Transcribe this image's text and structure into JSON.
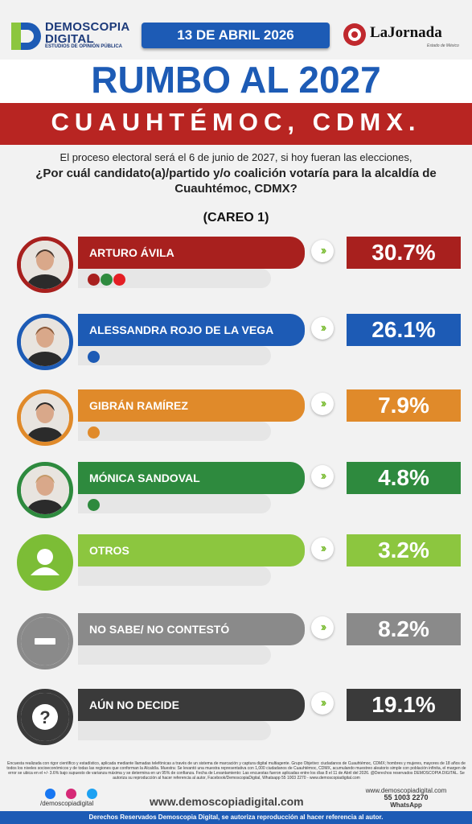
{
  "header": {
    "brand_left": "DEMOSCOPIA DIGITAL",
    "brand_left_tagline": "ESTUDIOS DE OPINIÓN PÚBLICA",
    "date": "13 DE ABRIL 2026",
    "brand_right": "LaJornada",
    "brand_right_tagline": "Estado de México"
  },
  "title": "RUMBO AL 2027",
  "subtitle": "CUAUHTÉMOC, CDMX.",
  "question_line1": "El proceso electoral será el 6 de junio de 2027, si hoy fueran las elecciones,",
  "question_line2": "¿Por cuál candidato(a)/partido y/o coalición votaría para la alcaldía de Cuauhtémoc, CDMX?",
  "careo": "(CAREO 1)",
  "chart_data": {
    "type": "bar",
    "title": "(CAREO 1)",
    "categories": [
      "ARTURO ÁVILA",
      "ALESSANDRA ROJO DE LA VEGA",
      "GIBRÁN RAMÍREZ",
      "MÓNICA SANDOVAL",
      "OTROS",
      "NO SABE/ NO CONTESTÓ",
      "AÚN NO DECIDE"
    ],
    "values": [
      30.7,
      26.1,
      7.9,
      4.8,
      3.2,
      8.2,
      19.1
    ],
    "value_labels": [
      "30.7%",
      "26.1%",
      "7.9%",
      "4.8%",
      "3.2%",
      "8.2%",
      "19.1%"
    ],
    "unit": "%",
    "colors": [
      "#a8201e",
      "#1d5bb5",
      "#e08a2a",
      "#2e8a3e",
      "#7cbd36",
      "#8a8a8a",
      "#3a3a3a"
    ],
    "party_chips": [
      [
        "MORENA",
        "PVEM",
        "PT"
      ],
      [
        "PAN"
      ],
      [
        "MC"
      ],
      [
        "PRI"
      ],
      [],
      [],
      []
    ]
  },
  "rows": [
    {
      "label": "ARTURO ÁVILA",
      "pct": "30.7%",
      "color": "#a8201e",
      "bar_color": "#a8201e",
      "icon": "candidate-photo"
    },
    {
      "label": "ALESSANDRA ROJO DE LA VEGA",
      "pct": "26.1%",
      "color": "#1d5bb5",
      "bar_color": "#1d5bb5",
      "icon": "candidate-photo"
    },
    {
      "label": "GIBRÁN RAMÍREZ",
      "pct": "7.9%",
      "color": "#e08a2a",
      "bar_color": "#e08a2a",
      "icon": "candidate-photo"
    },
    {
      "label": "MÓNICA SANDOVAL",
      "pct": "4.8%",
      "color": "#2e8a3e",
      "bar_color": "#2e8a3e",
      "icon": "candidate-photo"
    },
    {
      "label": "OTROS",
      "pct": "3.2%",
      "color": "#7cbd36",
      "bar_color": "#8cc63f",
      "icon": "user-icon"
    },
    {
      "label": "NO SABE/ NO CONTESTÓ",
      "pct": "8.2%",
      "color": "#8a8a8a",
      "bar_color": "#8a8a8a",
      "icon": "minus-icon"
    },
    {
      "label": "AÚN NO DECIDE",
      "pct": "19.1%",
      "color": "#3a3a3a",
      "bar_color": "#3a3a3a",
      "icon": "question-icon"
    }
  ],
  "footer": {
    "disclaimer": "Encuesta realizada con rigor científico y estadístico, aplicada mediante llamadas telefónicas a través de un sistema de marcación y captura digital multiagente. Grupo Objetivo: ciudadanos de Cuauhtémoc, CDMX; hombres y mujeres, mayores de 18 años de todos los niveles socioeconómicos y de todas las regiones que conforman la Alcaldía. Muestra: Se levantó una muestra representativa con 1,000 ciudadanos de Cuauhtémoc, CDMX, acumulando muestreo aleatorio simple con población infinita, el margen de error se ubica en el +/- 3.6% bajo supuesto de varianza máxima y se determina en un 95% de confianza. Fecha de Levantamiento: Las encuestas fueron aplicadas entre los días 8 el 11 de Abril del 2026. @Derechos reservados DEMOSCOPIA DIGITAL. Se autoriza su reproducción al hacer referencia al autor, Facebook/DemoscopiaDigital, Whatsapp 55 1003 2270 - www.demoscopiadigital.com",
    "handle": "/demoscopiadigital",
    "website": "www.demoscopiadigital.com",
    "contact_site": "www.demoscopiadigital.com",
    "phone": "55 1003 2270",
    "phone_label": "WhatsApp",
    "rights": "Derechos Reservados Demoscopia Digital, se autoriza reproducción al hacer referencia al autor."
  }
}
